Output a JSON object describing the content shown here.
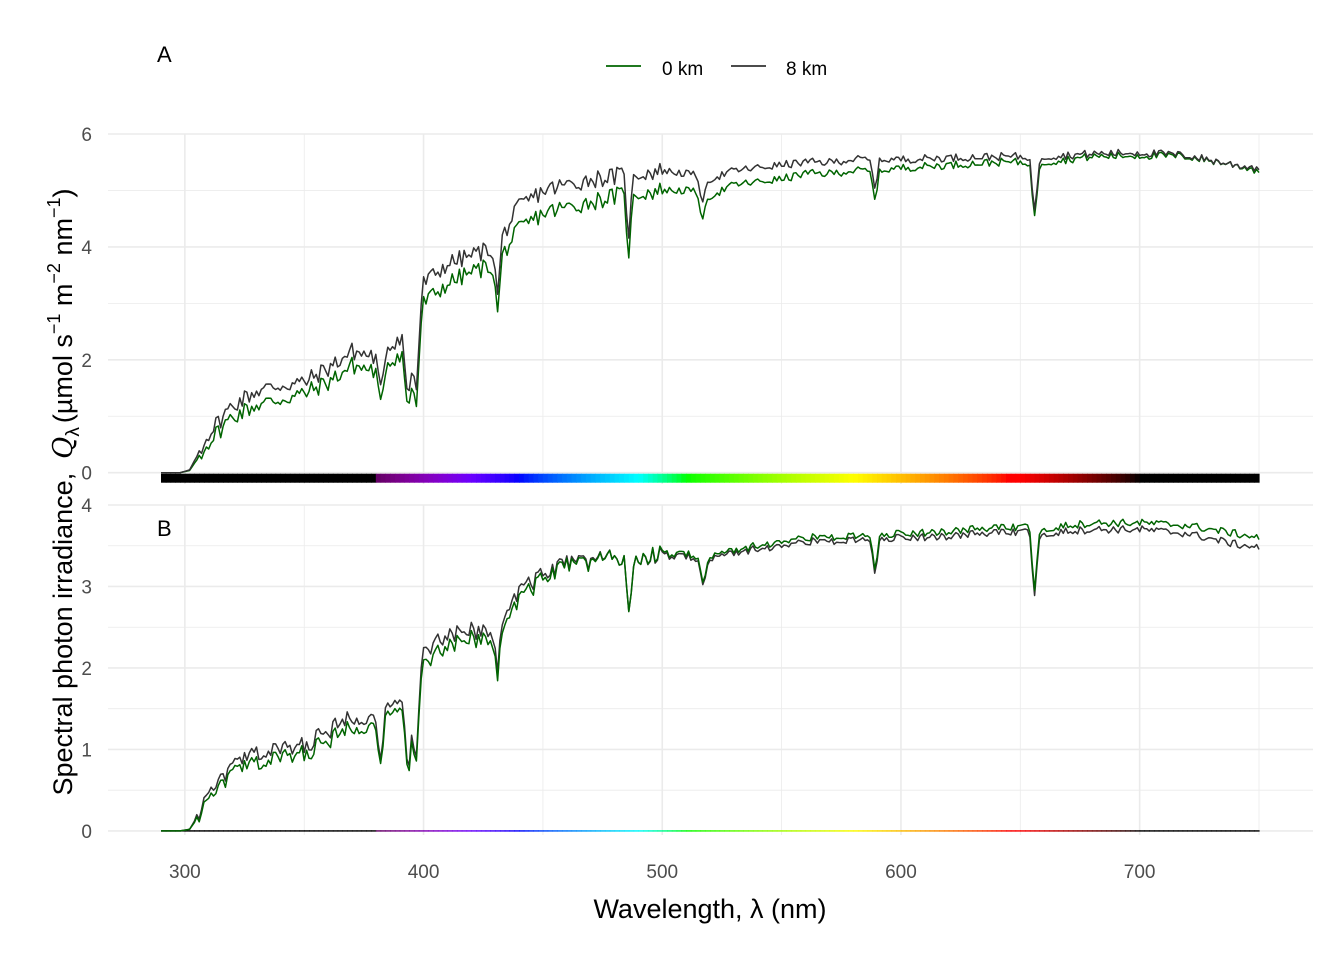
{
  "chart_data": {
    "type": "line",
    "xlabel": "Wavelength,  λ (nm)",
    "ylabel": {
      "symbol": "Q",
      "subscript": "λ",
      "prefix": "Spectral photon irradiance,",
      "units_open": "(µmol s",
      "exp1": "−1",
      "units_mid1": " m",
      "exp2": "−2",
      "units_mid2": " nm",
      "exp3": "−1",
      "units_close": ")"
    },
    "xlim": [
      290,
      750
    ],
    "x_ticks": [
      300,
      400,
      500,
      600,
      700
    ],
    "x_tick_labels": [
      "300",
      "400",
      "500",
      "600",
      "700"
    ],
    "grid": true,
    "legend": {
      "position": "top",
      "entries": [
        {
          "name": "0 km",
          "color": "#006400"
        },
        {
          "name": "8 km",
          "color": "#333333"
        }
      ]
    },
    "colors": {
      "0 km": "#006400",
      "8 km": "#333333",
      "grid": "#ebebeb"
    },
    "wavelength_colorbar": true,
    "panels": [
      {
        "tag": "A",
        "ylim": [
          -0.2,
          6.0
        ],
        "y_ticks": [
          0,
          2,
          4,
          6
        ],
        "y_tick_labels": [
          "0",
          "2",
          "4",
          "6"
        ],
        "series": [
          {
            "name": "0 km",
            "base_x": [
              290,
              298,
              302,
              310,
              320,
              330,
              340,
              350,
              360,
              370,
              380,
              390,
              397,
              400,
              410,
              420,
              430,
              440,
              450,
              460,
              470,
              480,
              490,
              500,
              510,
              520,
              530,
              540,
              550,
              560,
              570,
              580,
              590,
              600,
              620,
              640,
              660,
              680,
              700,
              720,
              740,
              750
            ],
            "base_y": [
              0,
              0,
              0.04,
              0.55,
              1.0,
              1.2,
              1.3,
              1.4,
              1.6,
              1.9,
              1.8,
              2.1,
              2.0,
              3.0,
              3.35,
              3.55,
              3.7,
              4.3,
              4.6,
              4.7,
              4.8,
              4.9,
              4.95,
              5.0,
              5.0,
              4.9,
              5.1,
              5.15,
              5.2,
              5.3,
              5.3,
              5.35,
              5.35,
              5.4,
              5.45,
              5.5,
              5.5,
              5.6,
              5.62,
              5.6,
              5.45,
              5.35
            ],
            "dips": [
              [
                382,
                0.7
              ],
              [
                393.5,
                1.1
              ],
              [
                396.8,
                0.9
              ],
              [
                431,
                0.9
              ],
              [
                486,
                1.0
              ],
              [
                517,
                0.5
              ],
              [
                589,
                0.5
              ],
              [
                656,
                1.0
              ]
            ]
          },
          {
            "name": "8 km",
            "base_x": [
              290,
              298,
              302,
              310,
              320,
              330,
              340,
              350,
              360,
              370,
              380,
              390,
              397,
              400,
              410,
              420,
              430,
              440,
              450,
              460,
              470,
              480,
              490,
              500,
              510,
              520,
              530,
              540,
              550,
              560,
              570,
              580,
              590,
              600,
              620,
              640,
              660,
              680,
              700,
              720,
              740,
              750
            ],
            "base_y": [
              0,
              0,
              0.05,
              0.7,
              1.2,
              1.45,
              1.55,
              1.6,
              1.85,
              2.15,
              2.05,
              2.4,
              2.3,
              3.35,
              3.7,
              3.85,
              4.0,
              4.7,
              5.0,
              5.1,
              5.2,
              5.25,
              5.3,
              5.35,
              5.3,
              5.2,
              5.35,
              5.4,
              5.45,
              5.5,
              5.5,
              5.55,
              5.55,
              5.55,
              5.58,
              5.6,
              5.6,
              5.65,
              5.67,
              5.62,
              5.45,
              5.4
            ],
            "dips": [
              [
                382,
                0.7
              ],
              [
                393.5,
                1.2
              ],
              [
                396.8,
                0.9
              ],
              [
                431,
                0.9
              ],
              [
                486,
                1.0
              ],
              [
                517,
                0.5
              ],
              [
                589,
                0.5
              ],
              [
                656,
                1.0
              ]
            ]
          }
        ]
      },
      {
        "tag": "B",
        "ylim": [
          -0.05,
          4.0
        ],
        "y_ticks": [
          0,
          1,
          2,
          3,
          4
        ],
        "y_tick_labels": [
          "0",
          "1",
          "2",
          "3",
          "4"
        ],
        "series": [
          {
            "name": "0 km",
            "base_x": [
              290,
              298,
              302,
              310,
              320,
              330,
              340,
              350,
              360,
              370,
              380,
              390,
              397,
              400,
              410,
              420,
              430,
              440,
              450,
              460,
              470,
              480,
              490,
              500,
              510,
              520,
              530,
              540,
              550,
              560,
              570,
              580,
              590,
              600,
              620,
              640,
              660,
              680,
              700,
              720,
              740,
              750
            ],
            "base_y": [
              0,
              0,
              0.02,
              0.35,
              0.72,
              0.83,
              0.9,
              0.95,
              1.1,
              1.3,
              1.3,
              1.45,
              1.4,
              2.05,
              2.25,
              2.35,
              2.4,
              2.85,
              3.1,
              3.25,
              3.3,
              3.35,
              3.35,
              3.4,
              3.4,
              3.35,
              3.45,
              3.5,
              3.55,
              3.6,
              3.6,
              3.62,
              3.62,
              3.65,
              3.68,
              3.72,
              3.72,
              3.78,
              3.78,
              3.75,
              3.65,
              3.6
            ],
            "dips": [
              [
                382,
                0.45
              ],
              [
                393.5,
                0.75
              ],
              [
                396.8,
                0.6
              ],
              [
                431,
                0.6
              ],
              [
                486,
                0.7
              ],
              [
                517,
                0.35
              ],
              [
                589,
                0.4
              ],
              [
                656,
                0.8
              ]
            ]
          },
          {
            "name": "8 km",
            "base_x": [
              290,
              298,
              302,
              310,
              320,
              330,
              340,
              350,
              360,
              370,
              380,
              390,
              397,
              400,
              410,
              420,
              430,
              440,
              450,
              460,
              470,
              480,
              490,
              500,
              510,
              520,
              530,
              540,
              550,
              560,
              570,
              580,
              590,
              600,
              620,
              640,
              660,
              680,
              700,
              720,
              740,
              750
            ],
            "base_y": [
              0,
              0,
              0.02,
              0.42,
              0.8,
              0.95,
              1.0,
              1.05,
              1.22,
              1.42,
              1.4,
              1.55,
              1.5,
              2.2,
              2.38,
              2.45,
              2.5,
              2.95,
              3.15,
              3.28,
              3.32,
              3.35,
              3.35,
              3.38,
              3.37,
              3.32,
              3.42,
              3.46,
              3.5,
              3.55,
              3.55,
              3.57,
              3.57,
              3.6,
              3.62,
              3.66,
              3.66,
              3.7,
              3.7,
              3.65,
              3.52,
              3.48
            ],
            "dips": [
              [
                382,
                0.5
              ],
              [
                393.5,
                0.8
              ],
              [
                396.8,
                0.65
              ],
              [
                431,
                0.6
              ],
              [
                486,
                0.7
              ],
              [
                517,
                0.35
              ],
              [
                589,
                0.4
              ],
              [
                656,
                0.8
              ]
            ]
          }
        ]
      }
    ]
  }
}
